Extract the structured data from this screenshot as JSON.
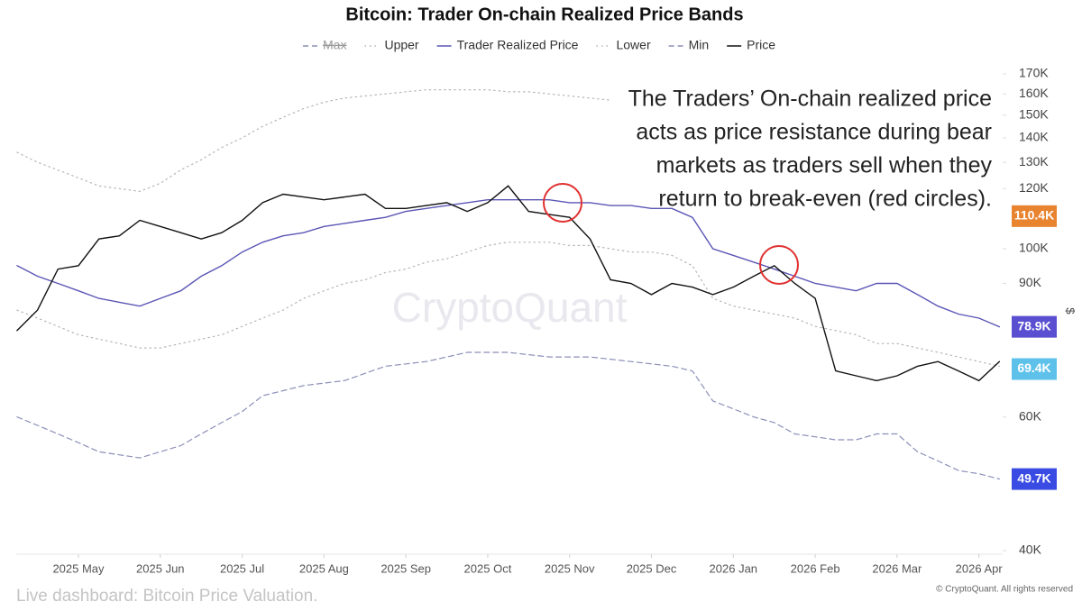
{
  "chart_data": {
    "type": "line",
    "title": "Bitcoin: Trader On-chain Realized Price Bands",
    "y_axis_label": "$",
    "log_scale": true,
    "watermark": "CryptoQuant",
    "annotation": [
      "The Traders’ On-chain realized price",
      "acts as price resistance during bear",
      "markets as traders sell when they",
      "return to break-even (red circles)."
    ],
    "footer": "Live dashboard: Bitcoin Price Valuation.",
    "copyright": "© CryptoQuant. All rights reserved",
    "xlim": [
      -0.76,
      11.29
    ],
    "xticks": [
      {
        "value": 0,
        "label": "2025 May"
      },
      {
        "value": 1,
        "label": "2025 Jun"
      },
      {
        "value": 2,
        "label": "2025 Jul"
      },
      {
        "value": 3,
        "label": "2025 Aug"
      },
      {
        "value": 4,
        "label": "2025 Sep"
      },
      {
        "value": 5,
        "label": "2025 Oct"
      },
      {
        "value": 6,
        "label": "2025 Nov"
      },
      {
        "value": 7,
        "label": "2025 Dec"
      },
      {
        "value": 8,
        "label": "2026 Jan"
      },
      {
        "value": 9,
        "label": "2026 Feb"
      },
      {
        "value": 10,
        "label": "2026 Mar"
      },
      {
        "value": 11,
        "label": "2026 Apr"
      }
    ],
    "ylim": [
      39560,
      173300
    ],
    "yticks": [
      {
        "value": 40000,
        "label": "40K"
      },
      {
        "value": 60000,
        "label": "60K"
      },
      {
        "value": 90000,
        "label": "90K"
      },
      {
        "value": 100000,
        "label": "100K"
      },
      {
        "value": 120000,
        "label": "120K"
      },
      {
        "value": 130000,
        "label": "130K"
      },
      {
        "value": 140000,
        "label": "140K"
      },
      {
        "value": 150000,
        "label": "150K"
      },
      {
        "value": 160000,
        "label": "160K"
      },
      {
        "value": 170000,
        "label": "170K"
      }
    ],
    "end_labels": [
      {
        "value": 110400,
        "label": "110.4K",
        "color": "#e8832f"
      },
      {
        "value": 78900,
        "label": "78.9K",
        "color": "#5a4fd1"
      },
      {
        "value": 69400,
        "label": "69.4K",
        "color": "#5ec1ea"
      },
      {
        "value": 49700,
        "label": "49.7K",
        "color": "#3a4be3"
      }
    ],
    "x": [
      -0.75,
      -0.5,
      -0.25,
      0,
      0.25,
      0.5,
      0.75,
      1,
      1.25,
      1.5,
      1.75,
      2,
      2.25,
      2.5,
      2.75,
      3,
      3.25,
      3.5,
      3.75,
      4,
      4.25,
      4.5,
      4.75,
      5,
      5.25,
      5.5,
      5.75,
      6,
      6.25,
      6.5,
      6.75,
      7,
      7.25,
      7.5,
      7.75,
      8,
      8.25,
      8.5,
      8.75,
      9,
      9.25,
      9.5,
      9.75,
      10,
      10.25,
      10.5,
      10.75,
      11,
      11.25
    ],
    "series": [
      {
        "name": "Max",
        "color": "#8c8fb0",
        "style": "dashed",
        "hidden": true
      },
      {
        "name": "Upper",
        "color": "#b5b5b5",
        "style": "dotted",
        "values": [
          134000,
          130000,
          127000,
          124000,
          121000,
          120000,
          119000,
          122000,
          127000,
          131000,
          136000,
          140000,
          145000,
          149000,
          153000,
          156000,
          158000,
          159000,
          160000,
          161000,
          162000,
          162000,
          162000,
          162000,
          161000,
          161000,
          160000,
          159000,
          158000,
          157000,
          null,
          null,
          null,
          null,
          null,
          null,
          null,
          null,
          null,
          null,
          null,
          null,
          null,
          null,
          null,
          null,
          null,
          null,
          null
        ]
      },
      {
        "name": "Trader Realized Price",
        "color": "#5a56b5",
        "style": "solid",
        "values": [
          95000,
          92000,
          90000,
          88000,
          86000,
          85000,
          84000,
          86000,
          88000,
          92000,
          95000,
          99000,
          102000,
          104000,
          105000,
          107000,
          108000,
          109000,
          110000,
          112000,
          113000,
          114000,
          115000,
          116000,
          116000,
          116000,
          116000,
          115000,
          115000,
          114000,
          114000,
          113000,
          113000,
          110000,
          100000,
          98000,
          96000,
          94000,
          92000,
          90000,
          89000,
          88000,
          90000,
          90000,
          87000,
          84000,
          82000,
          81000,
          78900
        ]
      },
      {
        "name": "Lower",
        "color": "#b5b5b5",
        "style": "dotted",
        "values": [
          83000,
          81000,
          79000,
          77000,
          76000,
          75000,
          74000,
          74000,
          75000,
          76000,
          77000,
          79000,
          81000,
          83000,
          86000,
          88000,
          90000,
          91000,
          93000,
          94000,
          96000,
          97000,
          99000,
          101000,
          102000,
          102000,
          102000,
          101000,
          101000,
          100000,
          99000,
          99000,
          98000,
          95000,
          86000,
          84000,
          83000,
          82000,
          81000,
          79000,
          78000,
          77000,
          75000,
          75000,
          74000,
          73000,
          72000,
          71000,
          70000
        ]
      },
      {
        "name": "Min",
        "color": "#8c8fb8",
        "style": "dashed",
        "values": [
          60000,
          58500,
          57000,
          55500,
          54000,
          53500,
          53000,
          54000,
          55000,
          57000,
          59000,
          61000,
          64000,
          65000,
          66000,
          66500,
          67000,
          68500,
          70000,
          70500,
          71000,
          72000,
          73000,
          73000,
          73000,
          72500,
          72000,
          72000,
          72000,
          71500,
          71000,
          70500,
          70000,
          69000,
          63000,
          61500,
          60000,
          59000,
          57000,
          56500,
          56000,
          56000,
          57000,
          57000,
          54000,
          52500,
          51000,
          50500,
          49700
        ]
      },
      {
        "name": "Price",
        "color": "#111111",
        "style": "solid",
        "values": [
          78000,
          83000,
          94000,
          95000,
          103000,
          104000,
          109000,
          107000,
          105000,
          103000,
          105000,
          109000,
          115000,
          118000,
          117000,
          116000,
          117000,
          118000,
          113000,
          113000,
          114000,
          115000,
          112000,
          115000,
          121000,
          112000,
          111000,
          110000,
          103000,
          91000,
          90000,
          87000,
          90000,
          89000,
          87000,
          89000,
          92000,
          95000,
          90000,
          86000,
          69000,
          68000,
          67000,
          68000,
          70000,
          71000,
          69000,
          67000,
          71000
        ]
      }
    ]
  }
}
